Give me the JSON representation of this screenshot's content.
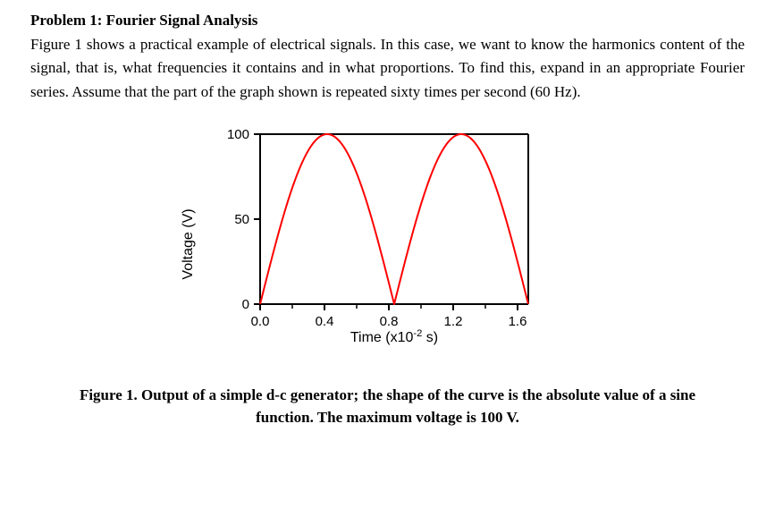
{
  "problem": {
    "title": "Problem 1: Fourier Signal Analysis",
    "body": "Figure 1 shows a practical example of electrical signals. In this case, we want to know the harmonics content of the signal, that is, what frequencies it contains and in what proportions. To find this, expand in an appropriate Fourier series. Assume that the part of the graph shown is repeated sixty times per second (60 Hz)."
  },
  "chart": {
    "type": "line",
    "y_label": "Voltage (V)",
    "x_label_pre": "Time (x10",
    "x_label_sup": "-2",
    "x_label_post": " s)",
    "x_ticks": [
      "0.0",
      "0.4",
      "0.8",
      "1.2",
      "1.6"
    ],
    "y_ticks": [
      "0",
      "50",
      "100"
    ],
    "xlim": [
      0.0,
      1.6667
    ],
    "ylim": [
      0,
      100
    ],
    "amplitude": 100,
    "period": 0.8333,
    "line_color": "#ff0000",
    "line_width": 2,
    "axis_color": "#000000",
    "axis_width": 2,
    "background": "#ffffff",
    "tick_font_size": 15,
    "axis_label_font_size": 16
  },
  "caption": {
    "line1": "Figure 1. Output of a simple d-c generator; the shape of the curve is the absolute value of a sine",
    "line2": "function. The maximum voltage is 100 V."
  }
}
